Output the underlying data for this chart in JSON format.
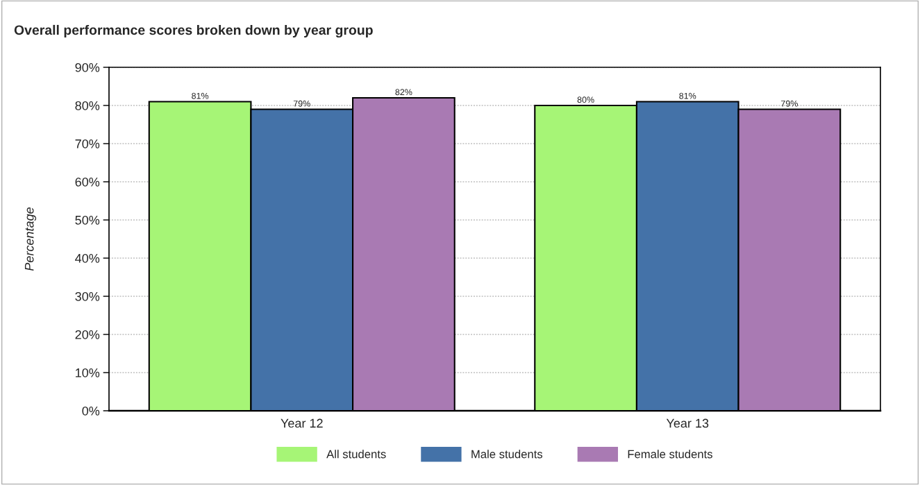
{
  "chart_data": {
    "type": "bar",
    "title": "Overall performance scores broken down by year group",
    "ylabel": "Percentage",
    "categories": [
      "Year 12",
      "Year 13"
    ],
    "series": [
      {
        "name": "All students",
        "color": "#a6f576",
        "values": [
          81,
          80
        ],
        "value_labels": [
          "81%",
          "80%"
        ]
      },
      {
        "name": "Male students",
        "color": "#4472a8",
        "values": [
          79,
          81
        ],
        "value_labels": [
          "79%",
          "81%"
        ]
      },
      {
        "name": "Female students",
        "color": "#a97ab3",
        "values": [
          82,
          79
        ],
        "value_labels": [
          "82%",
          "79%"
        ]
      }
    ],
    "ylim": [
      0,
      90
    ],
    "yticks": [
      {
        "value": 0,
        "label": "0%"
      },
      {
        "value": 10,
        "label": "10%"
      },
      {
        "value": 20,
        "label": "20%"
      },
      {
        "value": 30,
        "label": "30%"
      },
      {
        "value": 40,
        "label": "40%"
      },
      {
        "value": 50,
        "label": "50%"
      },
      {
        "value": 60,
        "label": "60%"
      },
      {
        "value": 70,
        "label": "70%"
      },
      {
        "value": 80,
        "label": "80%"
      },
      {
        "value": 90,
        "label": "90%"
      }
    ],
    "grid": "y",
    "legend": "bottom"
  }
}
